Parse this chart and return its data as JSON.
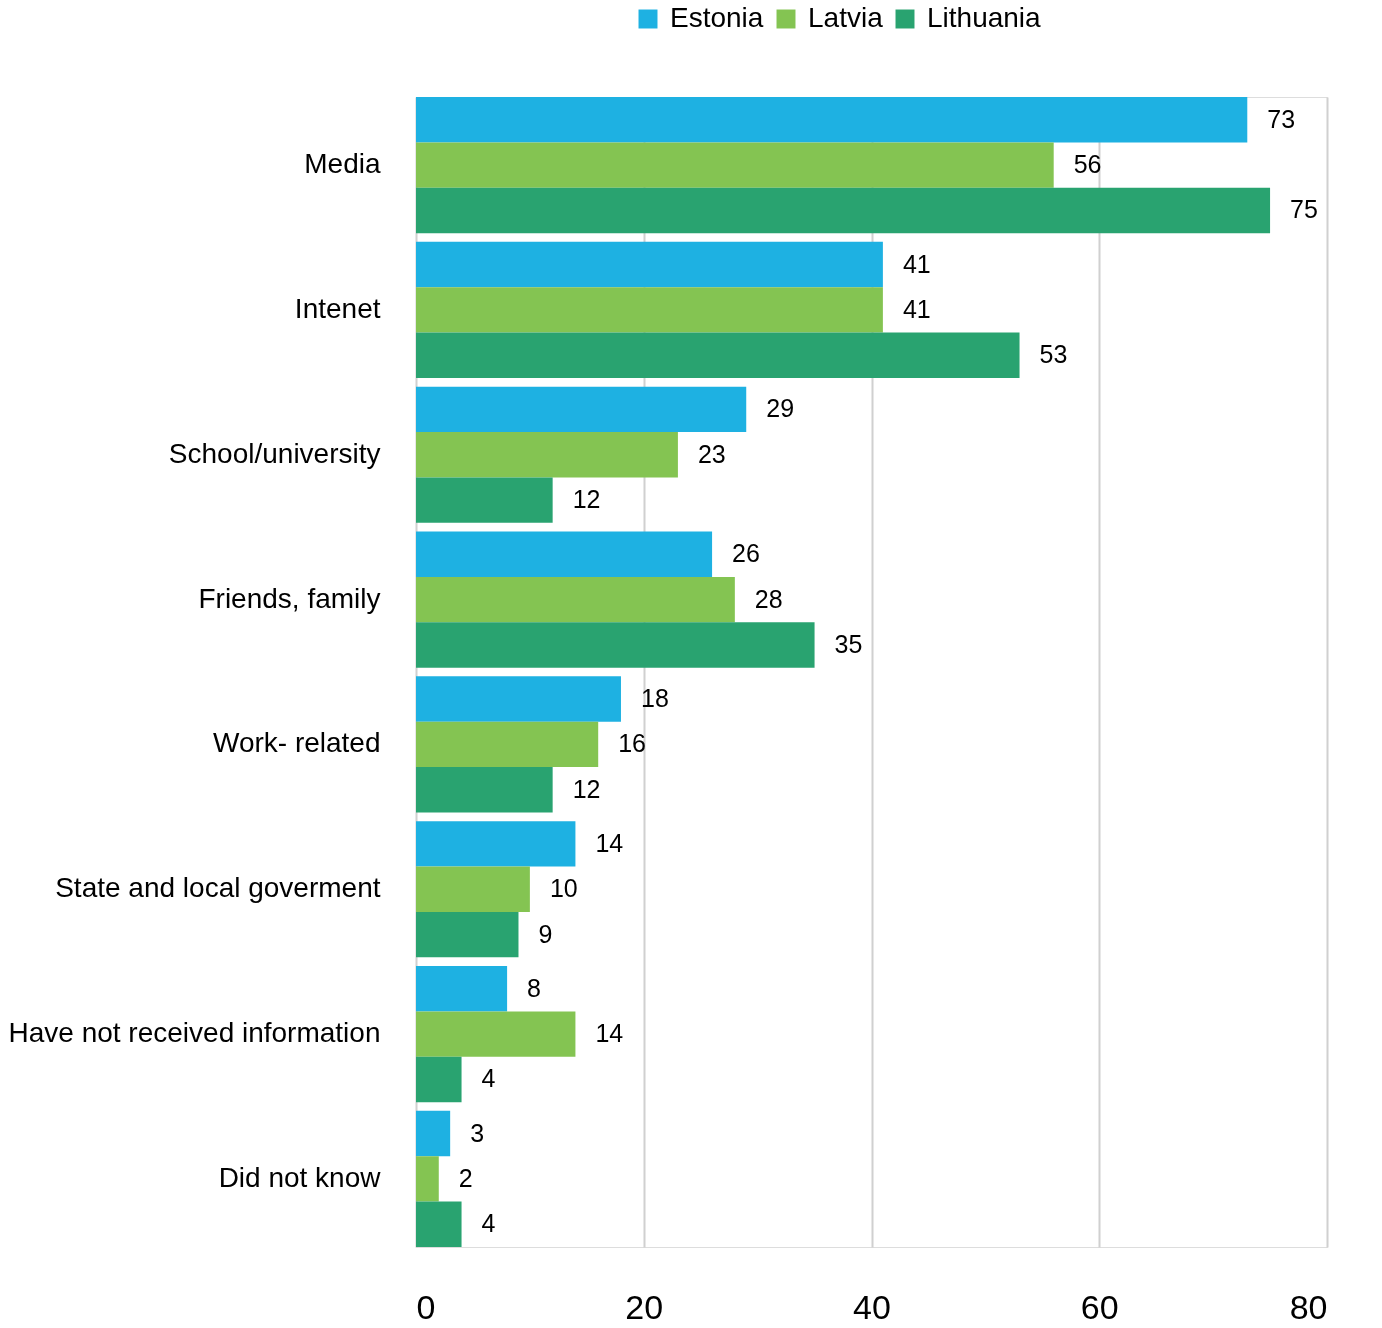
{
  "chart_data": {
    "type": "bar",
    "orientation": "horizontal",
    "categories": [
      "Media",
      "Intenet",
      "School/university",
      "Friends, family",
      "Work- related",
      "State and local goverment",
      "Have not received information",
      "Did not know"
    ],
    "series": [
      {
        "name": "Estonia",
        "color": "#1eb1e2",
        "values": [
          73,
          41,
          29,
          26,
          18,
          14,
          8,
          3
        ]
      },
      {
        "name": "Latvia",
        "color": "#84c452",
        "values": [
          56,
          41,
          23,
          28,
          16,
          10,
          14,
          2
        ]
      },
      {
        "name": "Lithuania",
        "color": "#29a370",
        "values": [
          75,
          53,
          12,
          35,
          12,
          9,
          4,
          4
        ]
      }
    ],
    "xlim": [
      0,
      80
    ],
    "xticks": [
      0,
      20,
      40,
      60,
      80
    ],
    "grid": "x",
    "legend": "top",
    "data_labels": true
  }
}
